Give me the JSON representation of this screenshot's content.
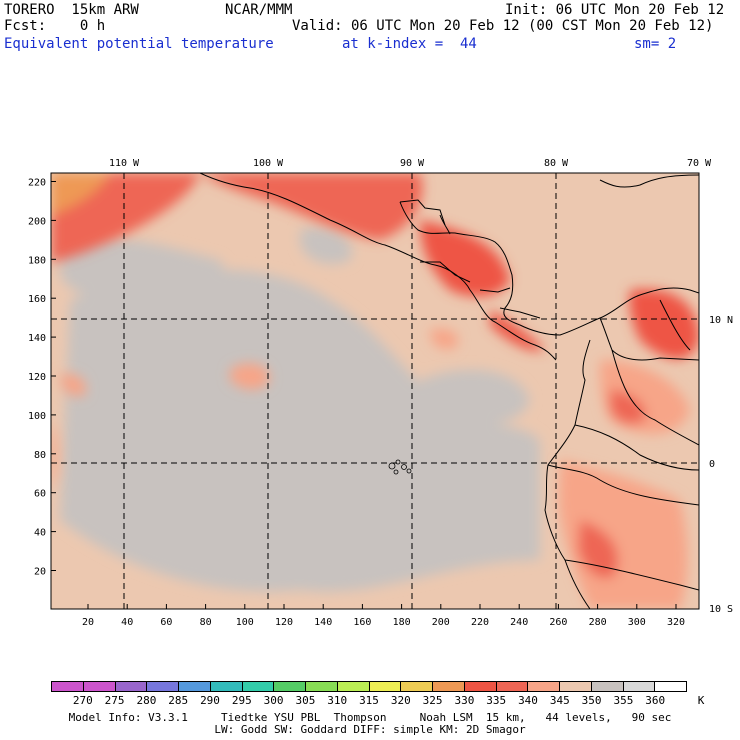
{
  "header": {
    "model": "TORERO  15km ARW",
    "org": "NCAR/MMM",
    "init": "Init: 06 UTC Mon 20 Feb 12",
    "fcst": "Fcst:    0 h",
    "valid": "Valid: 06 UTC Mon 20 Feb 12 (00 CST Mon 20 Feb 12)",
    "field": "Equivalent potential temperature",
    "level": "at k-index =  44",
    "smooth": "sm= 2"
  },
  "map": {
    "lon_labels": [
      "110 W",
      "100 W",
      "90 W",
      "80 W",
      "70 W"
    ],
    "lat_labels": [
      "10 N",
      "0",
      "10 S"
    ],
    "y_grid_labels": [
      "220",
      "200",
      "180",
      "160",
      "140",
      "120",
      "100",
      "80",
      "60",
      "40",
      "20"
    ],
    "x_grid_labels": [
      "20",
      "40",
      "60",
      "80",
      "100",
      "120",
      "140",
      "160",
      "180",
      "200",
      "220",
      "240",
      "260",
      "280",
      "300",
      "320"
    ]
  },
  "colorbar": {
    "unit": "K",
    "levels": [
      "270",
      "275",
      "280",
      "285",
      "290",
      "295",
      "300",
      "305",
      "310",
      "315",
      "320",
      "325",
      "330",
      "335",
      "340",
      "345",
      "350",
      "355",
      "360"
    ],
    "colors": [
      "#cc55cc",
      "#9966cc",
      "#7777dd",
      "#5599dd",
      "#33bbbb",
      "#33ccaa",
      "#55cc66",
      "#88dd55",
      "#bbee55",
      "#eeee55",
      "#eecc55",
      "#ee9955",
      "#ee5544",
      "#ee6655",
      "#f7a588",
      "#ecc8b0",
      "#c8c2bf",
      "#d9d9d9",
      "#ffffff"
    ]
  },
  "footer": {
    "line1": "Model Info: V3.3.1     Tiedtke YSU PBL  Thompson     Noah LSM  15 km,   44 levels,   90 sec",
    "line2": "LW: Godd SW: Goddard DIFF: simple KM: 2D Smagor"
  }
}
